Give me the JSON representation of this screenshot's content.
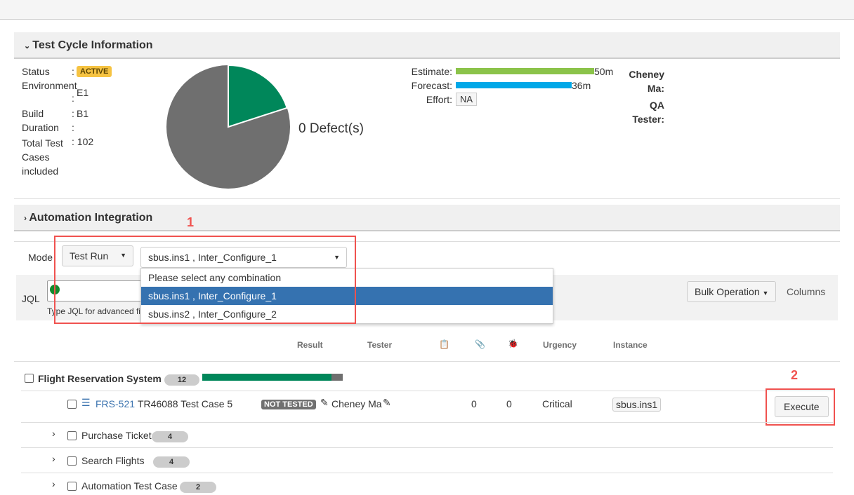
{
  "cycle": {
    "title": "Test Cycle Information",
    "status_label": "Status",
    "status": "ACTIVE",
    "env_label": "Environment",
    "env": "E1",
    "build_label": "Build",
    "build": "B1",
    "duration_label": "Duration",
    "total_label_1": "Total Test",
    "total_label_2": "Cases",
    "total_label_3": "included",
    "total": "102",
    "defects": "0 Defect(s)",
    "pie": {
      "passed_fraction": 0.2,
      "colors": {
        "passed": "#00875a",
        "unexecuted": "#6f6f6f"
      }
    },
    "estimate_label": "Estimate:",
    "estimate": "50m",
    "forecast_label": "Forecast:",
    "forecast": "36m",
    "effort_label": "Effort:",
    "effort": "NA",
    "user_1": "Cheney",
    "user_2": "Ma:",
    "role_1": "QA",
    "role_2": "Tester:"
  },
  "automation": {
    "title": "Automation Integration",
    "mode_label": "Mode",
    "mode_value": "Test Run",
    "combo_value": "sbus.ins1 , Inter_Configure_1",
    "options": [
      "Please select any combination",
      "sbus.ins1 , Inter_Configure_1",
      "sbus.ins2 , Inter_Configure_2"
    ]
  },
  "jql": {
    "label": "JQL",
    "hint": "Type JQL for advanced fi",
    "bulk": "Bulk Operation",
    "columns": "Columns"
  },
  "annotations": [
    "1",
    "2"
  ],
  "table": {
    "headers": {
      "result": "Result",
      "tester": "Tester",
      "urgency": "Urgency",
      "instance": "Instance"
    },
    "group": {
      "name": "Flight Reservation System",
      "count": "12",
      "progress_fraction": 0.92
    },
    "row": {
      "key": "FRS-521",
      "summary": "TR46088 Test Case 5",
      "status": "NOT TESTED",
      "tester": "Cheney Ma",
      "attachments": "0",
      "defects": "0",
      "urgency": "Critical",
      "instance": "sbus.ins1",
      "execute": "Execute"
    },
    "folders": [
      {
        "name": "Purchase Ticket",
        "count": "4"
      },
      {
        "name": "Search Flights",
        "count": "4"
      },
      {
        "name": "Automation Test Case",
        "count": "2"
      }
    ]
  }
}
